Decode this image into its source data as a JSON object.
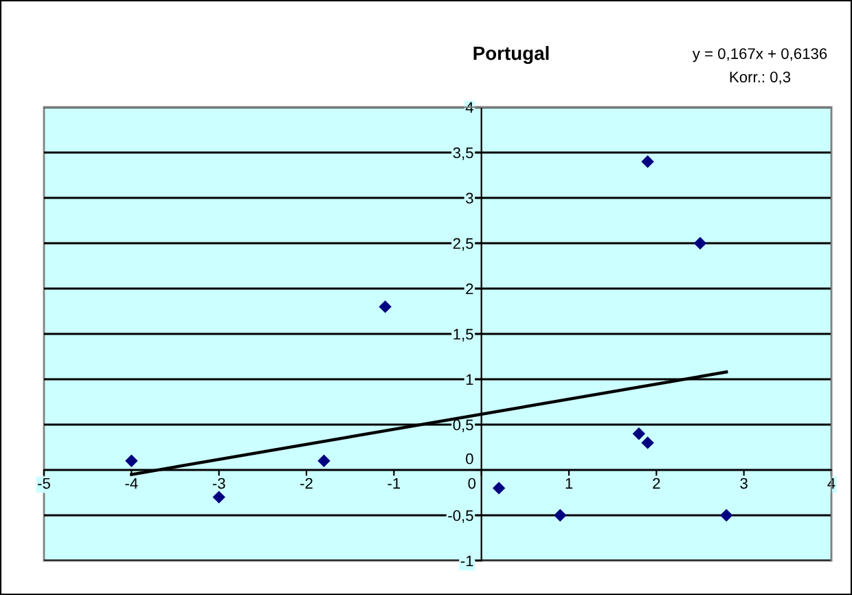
{
  "chart_data": {
    "type": "scatter",
    "title": "Portugal",
    "annotations": [
      "y = 0,167x + 0,6136",
      "Korr.: 0,3"
    ],
    "series": [
      {
        "color": "#000080",
        "marker": "diamond",
        "x": [
          -4,
          -3,
          -1.8,
          -1.1,
          0.2,
          0.9,
          1.8,
          1.9,
          1.9,
          2.5,
          2.8
        ],
        "values": [
          0.1,
          -0.3,
          0.1,
          1.8,
          -0.2,
          -0.5,
          0.4,
          0.3,
          3.4,
          2.5,
          -0.5
        ]
      },
      {
        "type": "line",
        "color": "#000000",
        "marker": "none",
        "line_style": "solid",
        "x": [
          -4,
          2.8
        ],
        "values": [
          -0.05,
          1.08
        ]
      }
    ],
    "xlim": [
      -5,
      4
    ],
    "xticks": [
      -5,
      -4,
      -3,
      -2,
      -1,
      0,
      1,
      2,
      3,
      4
    ],
    "ylim": [
      -1,
      4
    ],
    "yticks": [
      -1,
      {
        "value": -0.5,
        "label": "-0,5"
      },
      0,
      {
        "value": 0.5,
        "label": "0,5"
      },
      1,
      {
        "value": 1.5,
        "label": "1,5"
      },
      2,
      {
        "value": 2.5,
        "label": "2,5"
      },
      3,
      {
        "value": 3.5,
        "label": "3,5"
      },
      4
    ],
    "grid": "y",
    "legend": false
  }
}
